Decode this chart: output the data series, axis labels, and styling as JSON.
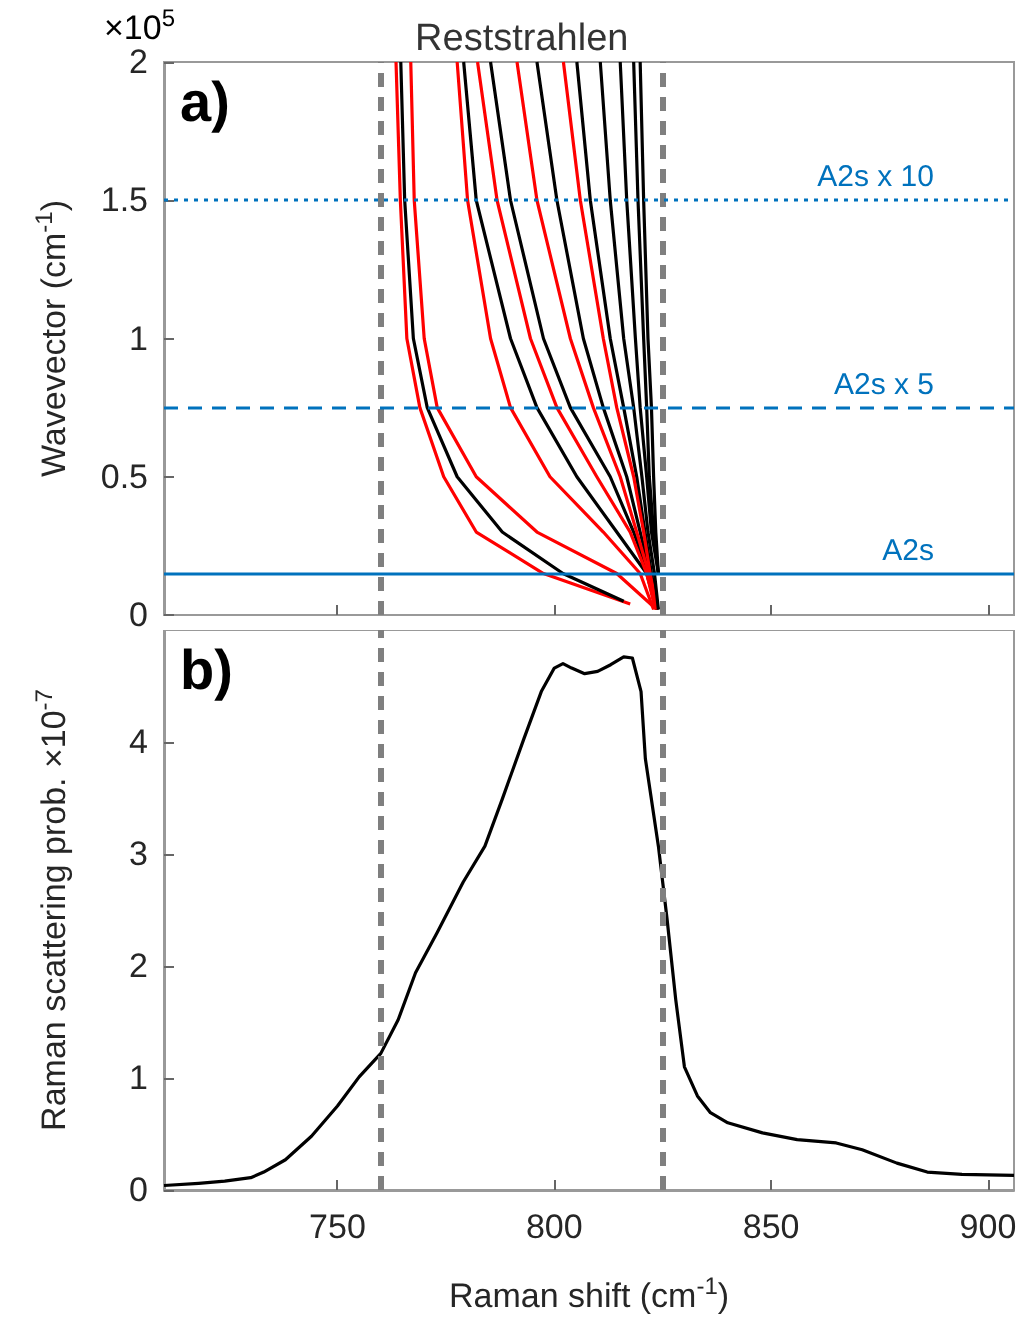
{
  "chart_data": [
    {
      "type": "line",
      "ylabel": "Wavevector (cm$^{-1}$)",
      "annotations": [
        "a)",
        "×10$^{5}$",
        {
          "text": "Reststrahlen",
          "x": 792.5,
          "y": 2
        }
      ],
      "xlim": [
        710,
        906
      ],
      "xticks": [
        750,
        800,
        850,
        900
      ],
      "ylim": [
        0,
        2
      ],
      "yticks": [
        0,
        0.5,
        1,
        1.5,
        2
      ],
      "tick_labels": "y",
      "ref_lines": [
        {
          "axis": "x",
          "value": 760,
          "color": "#7f7f7f",
          "line_style": "dashed"
        },
        {
          "axis": "x",
          "value": 825,
          "color": "#7f7f7f",
          "line_style": "dashed"
        },
        {
          "axis": "y",
          "value": 1.5,
          "label": "A2s x 10",
          "color": "#0072bd",
          "line_style": "dotted"
        },
        {
          "axis": "y",
          "value": 0.75,
          "label": "A2s x 5",
          "color": "#0072bd",
          "line_style": "dashed"
        },
        {
          "axis": "y",
          "value": 0.15,
          "label": "A2s",
          "color": "#0072bd",
          "line_style": "solid"
        }
      ],
      "series": [
        {
          "color": "#ff0000",
          "x": [
            817.5,
            797.5,
            782,
            774.5,
            769,
            766,
            764.5,
            763.5
          ],
          "values": [
            0.04,
            0.15,
            0.3,
            0.5,
            0.75,
            1,
            1.5,
            2
          ]
        },
        {
          "color": "#000000",
          "x": [
            816,
            802,
            788,
            777.6,
            770.7,
            767.5,
            765.5,
            764.6
          ],
          "values": [
            0.05,
            0.15,
            0.3,
            0.5,
            0.75,
            1,
            1.5,
            2
          ]
        },
        {
          "color": "#ff0000",
          "x": [
            822.9,
            814.4,
            796,
            782,
            773,
            770,
            767.7,
            766.9
          ],
          "values": [
            0.03,
            0.15,
            0.3,
            0.5,
            0.75,
            1,
            1.5,
            2
          ]
        },
        {
          "color": "#000000",
          "x": [
            823.6,
            821.3,
            814.4,
            805.2,
            796,
            789.9,
            782,
            779.1
          ],
          "values": [
            0.02,
            0.15,
            0.3,
            0.5,
            0.75,
            1,
            1.5,
            2
          ]
        },
        {
          "color": "#ff0000",
          "x": [
            822.9,
            819.8,
            811.3,
            799,
            789.9,
            785.3,
            780,
            777.6
          ],
          "values": [
            0.02,
            0.15,
            0.3,
            0.5,
            0.75,
            1,
            1.5,
            2
          ]
        },
        {
          "color": "#000000",
          "x": [
            823.6,
            821.6,
            818.3,
            812.9,
            803.7,
            797.5,
            789.9,
            785.3
          ],
          "values": [
            0.02,
            0.15,
            0.3,
            0.5,
            0.75,
            1,
            1.5,
            2
          ]
        },
        {
          "color": "#ff0000",
          "x": [
            823.3,
            821.3,
            817.5,
            809.8,
            800.6,
            794.5,
            786.8,
            782.3
          ],
          "values": [
            0.02,
            0.15,
            0.3,
            0.5,
            0.75,
            1,
            1.5,
            2
          ]
        },
        {
          "color": "#000000",
          "x": [
            823.8,
            822.1,
            819.8,
            816.7,
            811.3,
            806.7,
            800.6,
            796
          ],
          "values": [
            0.02,
            0.15,
            0.3,
            0.5,
            0.75,
            1,
            1.5,
            2
          ]
        },
        {
          "color": "#ff0000",
          "x": [
            823.5,
            821.8,
            819,
            815.2,
            809,
            803.7,
            796,
            791.4
          ],
          "values": [
            0.02,
            0.15,
            0.3,
            0.5,
            0.75,
            1,
            1.5,
            2
          ]
        },
        {
          "color": "#000000",
          "x": [
            823.9,
            822.4,
            820.9,
            819,
            816,
            812.9,
            808.3,
            805.2
          ],
          "values": [
            0.02,
            0.15,
            0.3,
            0.5,
            0.75,
            1,
            1.5,
            2
          ]
        },
        {
          "color": "#ff0000",
          "x": [
            823.7,
            822.1,
            820.6,
            818.3,
            814.4,
            811.3,
            806,
            802.1
          ],
          "values": [
            0.02,
            0.15,
            0.3,
            0.5,
            0.75,
            1,
            1.5,
            2
          ]
        },
        {
          "color": "#000000",
          "x": [
            824,
            823.1,
            821.6,
            820.2,
            818.3,
            816,
            812.9,
            810.6
          ],
          "values": [
            0.02,
            0.15,
            0.3,
            0.5,
            0.75,
            1,
            1.5,
            2
          ]
        },
        {
          "color": "#000000",
          "x": [
            824,
            822.4,
            821.3,
            819.8,
            818.7,
            816.7,
            815.2
          ],
          "values": [
            0.15,
            0.3,
            0.5,
            0.75,
            1,
            1.5,
            2
          ]
        },
        {
          "color": "#000000",
          "x": [
            824,
            822.9,
            821.9,
            821.3,
            820.6,
            819.3,
            818.3
          ],
          "values": [
            0.15,
            0.3,
            0.5,
            0.75,
            1,
            1.5,
            2
          ]
        },
        {
          "color": "#000000",
          "x": [
            824,
            823.4,
            822.9,
            822.4,
            821.6,
            820.6,
            819.8
          ],
          "values": [
            0.15,
            0.3,
            0.5,
            0.75,
            1,
            1.5,
            2
          ]
        }
      ]
    },
    {
      "type": "line",
      "xlabel": "Raman shift (cm$^{-1}$)",
      "ylabel": "Raman scattering prob. ×10$^{-7}$",
      "annotations": [
        "b)"
      ],
      "xlim": [
        710,
        906
      ],
      "xticks": [
        750,
        800,
        850,
        900
      ],
      "ylim": [
        0,
        5
      ],
      "yticks": [
        0,
        1,
        2,
        3,
        4
      ],
      "ref_lines": [
        {
          "axis": "x",
          "value": 760,
          "color": "#7f7f7f",
          "line_style": "dashed"
        },
        {
          "axis": "x",
          "value": 825,
          "color": "#7f7f7f",
          "line_style": "dashed"
        }
      ],
      "series": [
        {
          "color": "#000000",
          "x": [
            710,
            718,
            724,
            730,
            733,
            738,
            744,
            750,
            755,
            760,
            764,
            768,
            773,
            779,
            784,
            788,
            793,
            797,
            800,
            802,
            804,
            807,
            810,
            813,
            816,
            818,
            820,
            821,
            824,
            826,
            828,
            830,
            833,
            836,
            840,
            848,
            856,
            865,
            871,
            879,
            886,
            894,
            906
          ],
          "values": [
            0.04,
            0.06,
            0.08,
            0.11,
            0.16,
            0.27,
            0.48,
            0.75,
            1.01,
            1.22,
            1.52,
            1.94,
            2.3,
            2.75,
            3.07,
            3.49,
            4.03,
            4.45,
            4.66,
            4.7,
            4.66,
            4.61,
            4.63,
            4.69,
            4.76,
            4.75,
            4.45,
            3.85,
            3.07,
            2.42,
            1.7,
            1.1,
            0.84,
            0.69,
            0.6,
            0.51,
            0.45,
            0.42,
            0.36,
            0.24,
            0.16,
            0.14,
            0.13
          ]
        }
      ]
    }
  ]
}
